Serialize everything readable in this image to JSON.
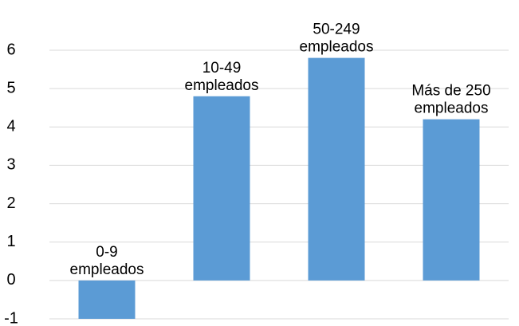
{
  "chart_data": {
    "type": "bar",
    "title": "",
    "xlabel": "",
    "ylabel": "",
    "categories": [
      "0-9 empleados",
      "10-49 empleados",
      "50-249 empleados",
      "Más de 250 empleados"
    ],
    "label_lines": [
      [
        "0-9",
        "empleados"
      ],
      [
        "10-49",
        "empleados"
      ],
      [
        "50-249",
        "empleados"
      ],
      [
        "Más de 250",
        "empleados"
      ]
    ],
    "values": [
      -1,
      4.8,
      5.8,
      4.2
    ],
    "ylim": [
      -1,
      6
    ],
    "yticks": [
      -1,
      0,
      1,
      2,
      3,
      4,
      5,
      6
    ],
    "grid": true,
    "legend": "none",
    "colors": {
      "bar": "#5b9bd5",
      "grid": "#d9d9d9",
      "text": "#000000"
    }
  }
}
